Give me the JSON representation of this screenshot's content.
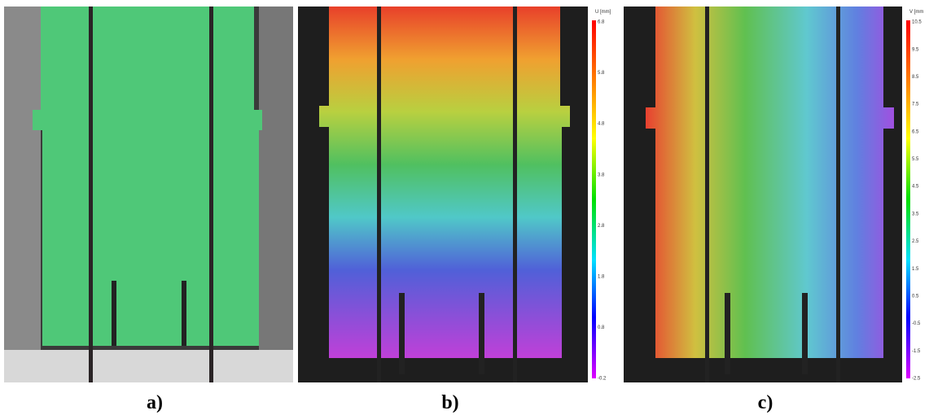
{
  "panels": [
    {
      "label": "a)"
    },
    {
      "label": "b)",
      "colorbar": {
        "title": "U [mm]",
        "ticks": [
          "6.8",
          "5.8",
          "4.8",
          "3.8",
          "2.8",
          "1.8",
          "0.8",
          "-0.2"
        ]
      }
    },
    {
      "label": "c)",
      "colorbar": {
        "title": "V [mm",
        "ticks": [
          "10.5",
          "9.5",
          "8.5",
          "7.5",
          "6.5",
          "5.5",
          "4.5",
          "3.5",
          "2.5",
          "1.5",
          "0.5",
          "-0.5",
          "-1.5",
          "-2.5"
        ]
      }
    }
  ]
}
